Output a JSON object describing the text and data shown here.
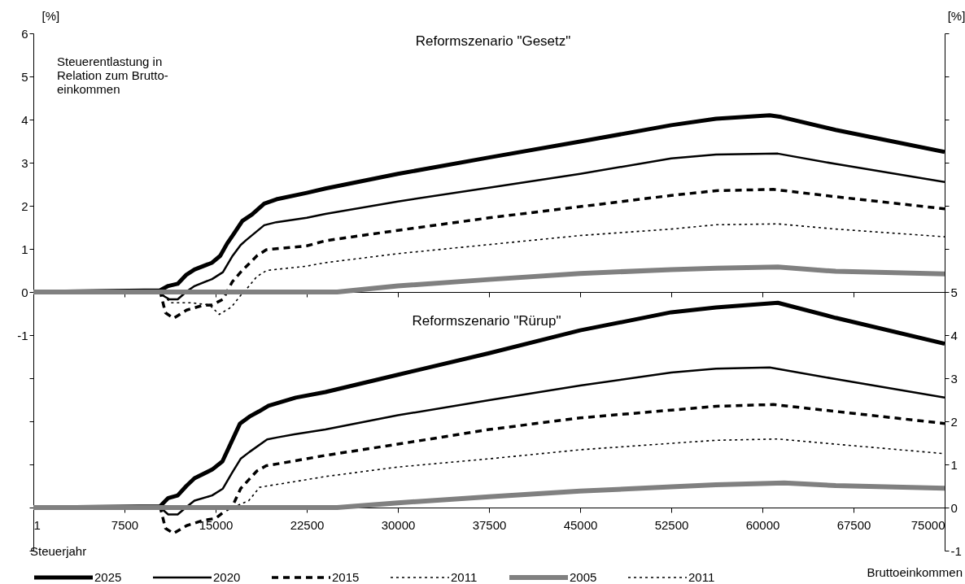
{
  "chart_data": {
    "type": "line",
    "ylabel": "[%]",
    "y2label": "[%]",
    "xlabel": "Bruttoeinkommen",
    "legend_title": "Steuerjahr",
    "legend": "bottom",
    "annotations": [
      "Steuerentlastung in\nRelation zum Brutto-\neinkommen",
      "Reformszenario \"Gesetz\"",
      "Reformszenario \"Rürup\""
    ],
    "xlim": [
      1,
      75000
    ],
    "xticks": [
      1,
      7500,
      15000,
      22500,
      30000,
      37500,
      45000,
      52500,
      60000,
      67500,
      75000
    ],
    "ylim": [
      -6,
      6
    ],
    "yticks": [
      6,
      5,
      4,
      3,
      2,
      1,
      0,
      -1,
      {
        "value": -2,
        "label": null
      },
      {
        "value": -3,
        "label": null
      },
      {
        "value": -4,
        "label": null
      },
      {
        "value": -5,
        "label": null
      },
      {
        "value": -6,
        "label": null
      }
    ],
    "y2lim": [
      -1,
      11
    ],
    "y2ticks": [
      {
        "value": 11,
        "label": null
      },
      {
        "value": 10,
        "label": null
      },
      {
        "value": 9,
        "label": null
      },
      {
        "value": 8,
        "label": null
      },
      {
        "value": 7,
        "label": null
      },
      {
        "value": 6,
        "label": null
      },
      5,
      4,
      3,
      2,
      1,
      0,
      -1
    ],
    "series": [
      {
        "name": "2025",
        "color": "#000000",
        "line_style": "solid",
        "x": [
          1,
          10430,
          11100,
          11880,
          12590,
          13260,
          14710,
          15380,
          15940,
          16500,
          17200,
          18000,
          19000,
          20000,
          22500,
          24040,
          30000,
          37500,
          45000,
          52500,
          56180,
          60600,
          61540,
          66030,
          75000
        ],
        "values": [
          0,
          0.04,
          0.14,
          0.19,
          0.4,
          0.52,
          0.68,
          0.84,
          1.12,
          1.35,
          1.65,
          1.8,
          2.05,
          2.15,
          2.3,
          2.4,
          2.74,
          3.12,
          3.49,
          3.87,
          4.02,
          4.1,
          4.06,
          3.76,
          3.25
        ]
      },
      {
        "name": "2020",
        "color": "#000000",
        "line_style": "solid",
        "x": [
          1,
          10450,
          10650,
          11200,
          11880,
          12650,
          13280,
          14710,
          15600,
          16400,
          17060,
          17500,
          19000,
          20000,
          22500,
          24040,
          30000,
          37500,
          45000,
          52500,
          56180,
          61270,
          66030,
          75000
        ],
        "values": [
          0,
          0,
          -0.08,
          -0.17,
          -0.17,
          0.02,
          0.14,
          0.3,
          0.46,
          0.84,
          1.09,
          1.2,
          1.55,
          1.62,
          1.72,
          1.81,
          2.1,
          2.42,
          2.74,
          3.1,
          3.19,
          3.21,
          2.97,
          2.55
        ]
      },
      {
        "name": "2015",
        "color": "#000000",
        "line_style": "dashed",
        "x": [
          1,
          10450,
          10870,
          11540,
          12610,
          13950,
          14710,
          15600,
          16380,
          17060,
          18400,
          19170,
          22500,
          24040,
          30000,
          37500,
          45000,
          52500,
          56180,
          60900,
          66030,
          75000
        ],
        "values": [
          0,
          0,
          -0.48,
          -0.61,
          -0.42,
          -0.31,
          -0.3,
          -0.17,
          0.24,
          0.46,
          0.84,
          0.98,
          1.07,
          1.19,
          1.43,
          1.72,
          1.98,
          2.24,
          2.35,
          2.38,
          2.21,
          1.93
        ]
      },
      {
        "name": "2011",
        "color": "#000000",
        "line_style": "dotted",
        "x": [
          1,
          10450,
          11300,
          13000,
          14500,
          15300,
          16300,
          17000,
          17700,
          18400,
          19200,
          22500,
          24040,
          30000,
          37500,
          45000,
          52500,
          56180,
          61270,
          66030,
          75000
        ],
        "values": [
          0,
          0,
          -0.25,
          -0.25,
          -0.3,
          -0.52,
          -0.35,
          -0.1,
          0.12,
          0.36,
          0.5,
          0.6,
          0.68,
          0.89,
          1.1,
          1.31,
          1.46,
          1.56,
          1.58,
          1.46,
          1.28
        ]
      },
      {
        "name": "2005",
        "color": "#808080",
        "line_style": "solid",
        "x": [
          1,
          25000,
          30000,
          37500,
          45000,
          52500,
          56180,
          61270,
          66030,
          75000
        ],
        "values": [
          0,
          0,
          0.14,
          0.29,
          0.43,
          0.52,
          0.55,
          0.58,
          0.48,
          0.42
        ]
      },
      {
        "color": "#000000",
        "line_style": "solid",
        "axis": "y2",
        "x": [
          1,
          10430,
          11100,
          11880,
          12590,
          13260,
          14710,
          15560,
          17010,
          17790,
          18570,
          19350,
          21590,
          24040,
          30000,
          37500,
          45000,
          52500,
          56180,
          61270,
          66030,
          75000
        ],
        "values": [
          0,
          0.03,
          0.22,
          0.28,
          0.5,
          0.68,
          0.88,
          1.07,
          1.95,
          2.11,
          2.23,
          2.36,
          2.55,
          2.68,
          3.08,
          3.58,
          4.11,
          4.53,
          4.64,
          4.75,
          4.4,
          3.8
        ]
      },
      {
        "color": "#000000",
        "line_style": "solid",
        "axis": "y2",
        "x": [
          1,
          10450,
          11100,
          11880,
          12590,
          13260,
          14710,
          15600,
          16380,
          17060,
          17790,
          19240,
          20130,
          21470,
          24040,
          30000,
          37500,
          45000,
          52500,
          56180,
          60600,
          66030,
          75000
        ],
        "values": [
          0,
          0,
          -0.16,
          -0.16,
          0.01,
          0.16,
          0.28,
          0.44,
          0.82,
          1.13,
          1.29,
          1.58,
          1.63,
          1.7,
          1.81,
          2.14,
          2.49,
          2.83,
          3.13,
          3.22,
          3.25,
          2.98,
          2.55
        ]
      },
      {
        "color": "#000000",
        "line_style": "dashed",
        "axis": "y2",
        "x": [
          1,
          10450,
          10870,
          11540,
          12610,
          13950,
          15000,
          15720,
          16380,
          17060,
          18400,
          19170,
          21470,
          24040,
          30000,
          37500,
          45000,
          52500,
          56180,
          60900,
          66030,
          75000
        ],
        "values": [
          0,
          0,
          -0.48,
          -0.6,
          -0.42,
          -0.3,
          -0.25,
          -0.09,
          0.03,
          0.44,
          0.85,
          0.97,
          1.08,
          1.21,
          1.47,
          1.81,
          2.08,
          2.26,
          2.35,
          2.39,
          2.23,
          1.95
        ]
      },
      {
        "name": "2011",
        "color": "#000000",
        "line_style": "dotted",
        "axis": "y2",
        "x": [
          1,
          16400,
          17730,
          18620,
          19240,
          21470,
          24040,
          30000,
          37500,
          45000,
          52500,
          56180,
          61270,
          66030,
          75000
        ],
        "values": [
          0,
          0,
          0.16,
          0.47,
          0.5,
          0.6,
          0.72,
          0.94,
          1.13,
          1.34,
          1.49,
          1.56,
          1.59,
          1.47,
          1.25
        ]
      },
      {
        "color": "#808080",
        "line_style": "solid",
        "axis": "y2",
        "x": [
          1,
          25000,
          30000,
          37500,
          45000,
          52500,
          56180,
          61800,
          66030,
          75000
        ],
        "values": [
          0,
          0,
          0.11,
          0.25,
          0.38,
          0.48,
          0.53,
          0.57,
          0.51,
          0.45
        ]
      }
    ]
  }
}
